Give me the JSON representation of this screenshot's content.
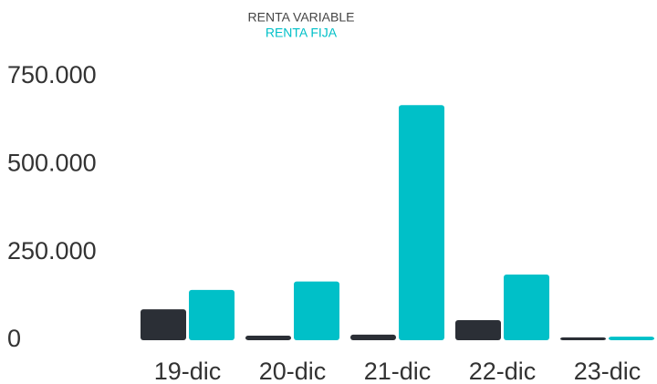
{
  "chart_data": {
    "type": "bar",
    "categories": [
      "19-dic",
      "20-dic",
      "21-dic",
      "22-dic",
      "23-dic"
    ],
    "series": [
      {
        "name": "RENTA VARIABLE",
        "color": "#2b2f36",
        "values": [
          88000,
          13000,
          16000,
          57000,
          8000
        ]
      },
      {
        "name": "RENTA FIJA",
        "color": "#00c0c8",
        "values": [
          143000,
          167000,
          669000,
          187000,
          10000
        ]
      }
    ],
    "ylim": [
      0,
      750000
    ],
    "yticks": [
      0,
      {
        "value": 250000,
        "label": "250.000"
      },
      {
        "value": 500000,
        "label": "500.000"
      },
      {
        "value": 750000,
        "label": "750.000"
      }
    ],
    "grid": false,
    "legend": "top"
  }
}
